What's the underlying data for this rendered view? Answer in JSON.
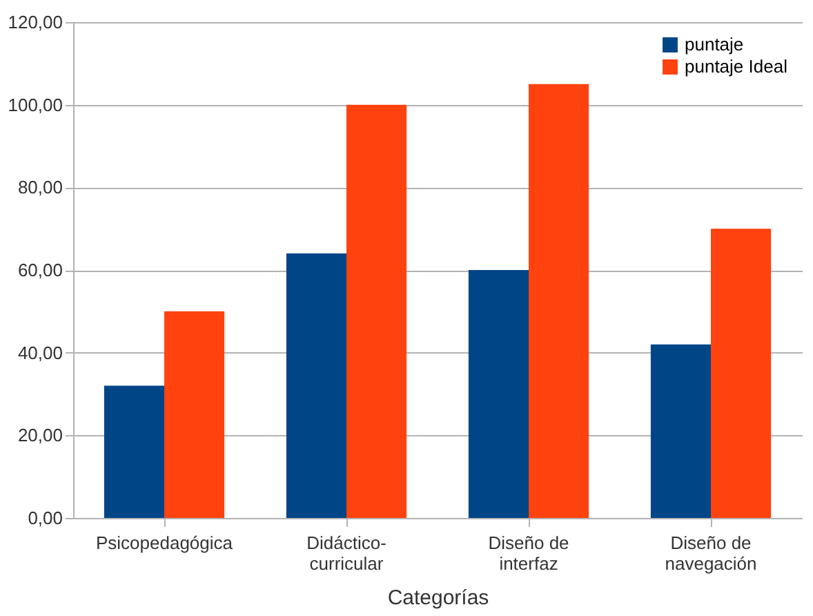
{
  "chart_data": {
    "type": "bar",
    "xlabel": "Categorías",
    "categories": [
      "Psicopedagógica",
      "Didáctico-curricular",
      "Diseño de interfaz",
      "Diseño de navegación"
    ],
    "series": [
      {
        "name": "puntaje",
        "color": "#004586",
        "values": [
          32,
          64,
          60,
          42
        ]
      },
      {
        "name": "puntaje Ideal",
        "color": "#ff420e",
        "values": [
          50,
          100,
          105,
          70
        ]
      }
    ],
    "ylim": [
      0,
      120
    ],
    "yticks": [
      {
        "value": 0,
        "label": "0,00"
      },
      {
        "value": 20,
        "label": "20,00"
      },
      {
        "value": 40,
        "label": "40,00"
      },
      {
        "value": 60,
        "label": "60,00"
      },
      {
        "value": 80,
        "label": "80,00"
      },
      {
        "value": 100,
        "label": "100,00"
      },
      {
        "value": 120,
        "label": "120,00"
      }
    ],
    "grid": "y",
    "legend": "top right"
  }
}
